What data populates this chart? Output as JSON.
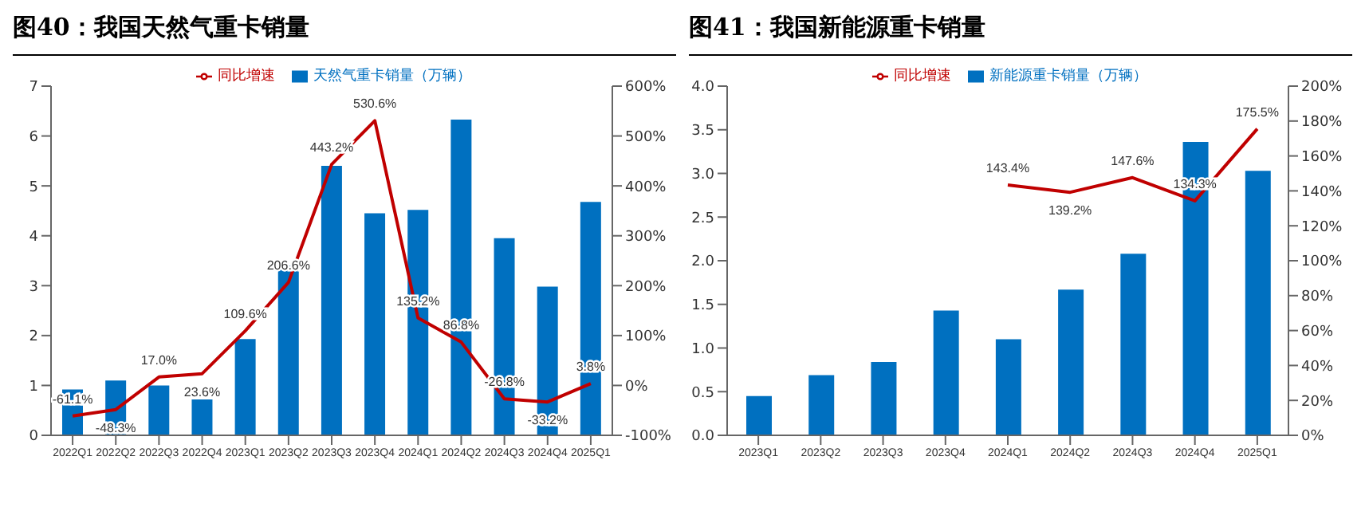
{
  "chart_data": [
    {
      "type": "bar",
      "title": "图40：我国天然气重卡销量",
      "categories": [
        "2022Q1",
        "2022Q2",
        "2022Q3",
        "2022Q4",
        "2023Q1",
        "2023Q2",
        "2023Q3",
        "2023Q4",
        "2024Q1",
        "2024Q2",
        "2024Q3",
        "2024Q4",
        "2025Q1"
      ],
      "series": [
        {
          "name": "天然气重卡销量（万辆）",
          "color": "#0070c0",
          "values": [
            0.92,
            1.1,
            1.0,
            0.72,
            1.93,
            3.4,
            5.4,
            4.45,
            4.52,
            6.33,
            3.95,
            2.98,
            4.68
          ]
        },
        {
          "name": "同比增速",
          "type": "line",
          "axis": "y2",
          "color": "#c00000",
          "values": [
            -61.1,
            -48.3,
            17.0,
            23.6,
            109.6,
            206.6,
            443.2,
            530.6,
            135.2,
            86.8,
            -26.8,
            -33.2,
            3.8
          ],
          "value_labels": [
            "-61.1%",
            "-48.3%",
            "17.0%",
            "23.6%",
            "109.6%",
            "206.6%",
            "443.2%",
            "530.6%",
            "135.2%",
            "86.8%",
            "-26.8%",
            "-33.2%",
            "3.8%"
          ]
        }
      ],
      "ylim": [
        0,
        7
      ],
      "yticks": [
        0,
        1,
        2,
        3,
        4,
        5,
        6,
        7
      ],
      "y2lim": [
        -100,
        600
      ],
      "y2ticks": [
        {
          "value": -100,
          "label": "-100%"
        },
        {
          "value": 0,
          "label": "0%"
        },
        {
          "value": 100,
          "label": "100%"
        },
        {
          "value": 200,
          "label": "200%"
        },
        {
          "value": 300,
          "label": "300%"
        },
        {
          "value": 400,
          "label": "400%"
        },
        {
          "value": 500,
          "label": "500%"
        },
        {
          "value": 600,
          "label": "600%"
        }
      ],
      "grid": false,
      "legend": "top",
      "marker": "none"
    },
    {
      "type": "bar",
      "title": "图41：我国新能源重卡销量",
      "categories": [
        "2023Q1",
        "2023Q2",
        "2023Q3",
        "2023Q4",
        "2024Q1",
        "2024Q2",
        "2024Q3",
        "2024Q4",
        "2025Q1"
      ],
      "series": [
        {
          "name": "新能源重卡销量（万辆）",
          "color": "#0070c0",
          "values": [
            0.45,
            0.69,
            0.84,
            1.43,
            1.1,
            1.67,
            2.08,
            3.36,
            3.03
          ]
        },
        {
          "name": "同比增速",
          "type": "line",
          "axis": "y2",
          "color": "#c00000",
          "values": [
            null,
            null,
            null,
            null,
            143.4,
            139.2,
            147.6,
            134.3,
            175.5
          ],
          "value_labels": [
            null,
            null,
            null,
            null,
            "143.4%",
            "139.2%",
            "147.6%",
            "134.3%",
            "175.5%"
          ]
        }
      ],
      "ylim": [
        0,
        4
      ],
      "yticks": [
        {
          "value": 0,
          "label": "0.0"
        },
        {
          "value": 0.5,
          "label": "0.5"
        },
        {
          "value": 1,
          "label": "1.0"
        },
        {
          "value": 1.5,
          "label": "1.5"
        },
        {
          "value": 2,
          "label": "2.0"
        },
        {
          "value": 2.5,
          "label": "2.5"
        },
        {
          "value": 3,
          "label": "3.0"
        },
        {
          "value": 3.5,
          "label": "3.5"
        },
        {
          "value": 4,
          "label": "4.0"
        }
      ],
      "y2lim": [
        0,
        200
      ],
      "y2ticks": [
        {
          "value": 0,
          "label": "0%"
        },
        {
          "value": 20,
          "label": "20%"
        },
        {
          "value": 40,
          "label": "40%"
        },
        {
          "value": 60,
          "label": "60%"
        },
        {
          "value": 80,
          "label": "80%"
        },
        {
          "value": 100,
          "label": "100%"
        },
        {
          "value": 120,
          "label": "120%"
        },
        {
          "value": 140,
          "label": "140%"
        },
        {
          "value": 160,
          "label": "160%"
        },
        {
          "value": 180,
          "label": "180%"
        },
        {
          "value": 200,
          "label": "200%"
        }
      ],
      "grid": false,
      "legend": "top",
      "marker": "none"
    }
  ]
}
